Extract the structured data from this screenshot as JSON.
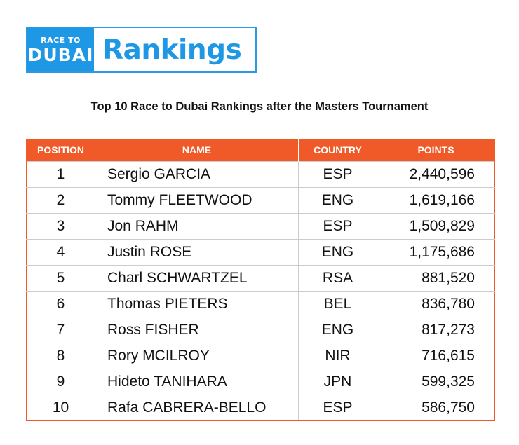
{
  "logo": {
    "race_to": "RACE TO",
    "dubai": "DUBAI",
    "word": "Rankings",
    "brand_color": "#1e97e4"
  },
  "subtitle": "Top 10 Race to Dubai Rankings after the Masters Tournament",
  "accent_color": "#f05a28",
  "table": {
    "headers": [
      "POSITION",
      "NAME",
      "COUNTRY",
      "POINTS"
    ],
    "rows": [
      {
        "position": "1",
        "name": "Sergio GARCIA",
        "country": "ESP",
        "points": "2,440,596"
      },
      {
        "position": "2",
        "name": "Tommy FLEETWOOD",
        "country": "ENG",
        "points": "1,619,166"
      },
      {
        "position": "3",
        "name": "Jon RAHM",
        "country": "ESP",
        "points": "1,509,829"
      },
      {
        "position": "4",
        "name": "Justin ROSE",
        "country": "ENG",
        "points": "1,175,686"
      },
      {
        "position": "5",
        "name": "Charl SCHWARTZEL",
        "country": "RSA",
        "points": "881,520"
      },
      {
        "position": "6",
        "name": "Thomas PIETERS",
        "country": "BEL",
        "points": "836,780"
      },
      {
        "position": "7",
        "name": "Ross FISHER",
        "country": "ENG",
        "points": "817,273"
      },
      {
        "position": "8",
        "name": "Rory MCILROY",
        "country": "NIR",
        "points": "716,615"
      },
      {
        "position": "9",
        "name": "Hideto TANIHARA",
        "country": "JPN",
        "points": "599,325"
      },
      {
        "position": "10",
        "name": "Rafa CABRERA-BELLO",
        "country": "ESP",
        "points": "586,750"
      }
    ]
  }
}
